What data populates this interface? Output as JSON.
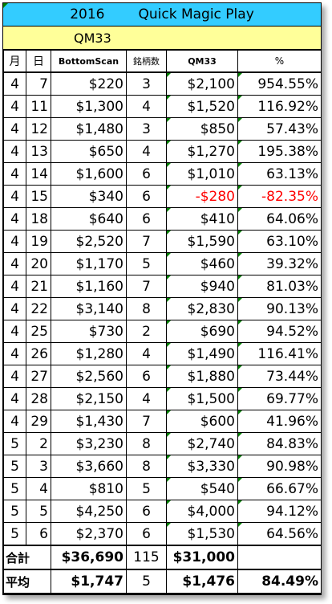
{
  "title": {
    "year": "2016",
    "name": "Quick Magic Play"
  },
  "subtitle": "QM33",
  "headers": {
    "month": "月",
    "day": "日",
    "bottomscan": "BottomScan",
    "count": "銘柄数",
    "qm33": "QM33",
    "pct": "%"
  },
  "rows": [
    {
      "m": "4",
      "d": "7",
      "bs": "$220",
      "n": "3",
      "qm": "$2,100",
      "pct": "954.55%"
    },
    {
      "m": "4",
      "d": "11",
      "bs": "$1,300",
      "n": "4",
      "qm": "$1,520",
      "pct": "116.92%"
    },
    {
      "m": "4",
      "d": "12",
      "bs": "$1,480",
      "n": "3",
      "qm": "$850",
      "pct": "57.43%"
    },
    {
      "m": "4",
      "d": "13",
      "bs": "$650",
      "n": "4",
      "qm": "$1,270",
      "pct": "195.38%"
    },
    {
      "m": "4",
      "d": "14",
      "bs": "$1,600",
      "n": "6",
      "qm": "$1,010",
      "pct": "63.13%"
    },
    {
      "m": "4",
      "d": "15",
      "bs": "$340",
      "n": "6",
      "qm": "-$280",
      "pct": "-82.35%",
      "negative": true
    },
    {
      "m": "4",
      "d": "18",
      "bs": "$640",
      "n": "6",
      "qm": "$410",
      "pct": "64.06%"
    },
    {
      "m": "4",
      "d": "19",
      "bs": "$2,520",
      "n": "7",
      "qm": "$1,590",
      "pct": "63.10%"
    },
    {
      "m": "4",
      "d": "20",
      "bs": "$1,170",
      "n": "5",
      "qm": "$460",
      "pct": "39.32%"
    },
    {
      "m": "4",
      "d": "21",
      "bs": "$1,160",
      "n": "7",
      "qm": "$940",
      "pct": "81.03%"
    },
    {
      "m": "4",
      "d": "22",
      "bs": "$3,140",
      "n": "8",
      "qm": "$2,830",
      "pct": "90.13%"
    },
    {
      "m": "4",
      "d": "25",
      "bs": "$730",
      "n": "2",
      "qm": "$690",
      "pct": "94.52%"
    },
    {
      "m": "4",
      "d": "26",
      "bs": "$1,280",
      "n": "4",
      "qm": "$1,490",
      "pct": "116.41%"
    },
    {
      "m": "4",
      "d": "27",
      "bs": "$2,560",
      "n": "6",
      "qm": "$1,880",
      "pct": "73.44%"
    },
    {
      "m": "4",
      "d": "28",
      "bs": "$2,150",
      "n": "4",
      "qm": "$1,500",
      "pct": "69.77%"
    },
    {
      "m": "4",
      "d": "29",
      "bs": "$1,430",
      "n": "7",
      "qm": "$600",
      "pct": "41.96%"
    },
    {
      "m": "5",
      "d": "2",
      "bs": "$3,230",
      "n": "8",
      "qm": "$2,740",
      "pct": "84.83%"
    },
    {
      "m": "5",
      "d": "3",
      "bs": "$3,660",
      "n": "8",
      "qm": "$3,330",
      "pct": "90.98%"
    },
    {
      "m": "5",
      "d": "4",
      "bs": "$810",
      "n": "5",
      "qm": "$540",
      "pct": "66.67%"
    },
    {
      "m": "5",
      "d": "5",
      "bs": "$4,250",
      "n": "6",
      "qm": "$4,000",
      "pct": "94.12%"
    },
    {
      "m": "5",
      "d": "6",
      "bs": "$2,370",
      "n": "6",
      "qm": "$1,530",
      "pct": "64.56%"
    }
  ],
  "total": {
    "label": "合計",
    "bs": "$36,690",
    "n": "115",
    "qm": "$31,000",
    "pct": ""
  },
  "average": {
    "label": "平均",
    "bs": "$1,747",
    "n": "5",
    "qm": "$1,476",
    "pct": "84.49%"
  },
  "colors": {
    "title_bg": "#33ccff",
    "subtitle_bg": "#ffff99",
    "negative": "#ff0000",
    "cell_marker": "#008000"
  }
}
